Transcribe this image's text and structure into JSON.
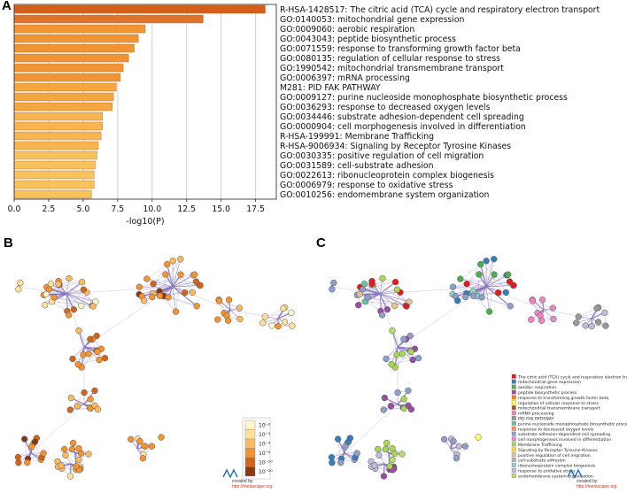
{
  "panels": {
    "a": "A",
    "b": "B",
    "c": "C"
  },
  "chart_data": {
    "type": "bar",
    "orientation": "horizontal",
    "title": "",
    "xlabel": "-log10(P)",
    "ylabel": "",
    "xlim": [
      0,
      19
    ],
    "xticks": [
      "0.0",
      "2.5",
      "5.0",
      "7.5",
      "10.0",
      "12.5",
      "15.0",
      "17.5"
    ],
    "grid": "vertical",
    "categories": [
      "R-HSA-1428517: The citric acid (TCA) cycle and respiratory electron transport",
      "GO:0140053: mitochondrial gene expression",
      "GO:0009060: aerobic respiration",
      "GO:0043043: peptide biosynthetic process",
      "GO:0071559: response to transforming growth factor beta",
      "GO:0080135: regulation of cellular response to stress",
      "GO:1990542: mitochondrial transmembrane transport",
      "GO:0006397: mRNA processing",
      "M281: PID FAK PATHWAY",
      "GO:0009127: purine nucleoside monophosphate biosynthetic process",
      "GO:0036293: response to decreased oxygen levels",
      "GO:0034446: substrate adhesion-dependent cell spreading",
      "GO:0000904: cell morphogenesis involved in differentiation",
      "R-HSA-199991: Membrane Trafficking",
      "R-HSA-9006934: Signaling by Receptor Tyrosine Kinases",
      "GO:0030335: positive regulation of cell migration",
      "GO:0031589: cell-substrate adhesion",
      "GO:0022613: ribonucleoprotein complex biogenesis",
      "GO:0006979: response to oxidative stress",
      "GO:0010256: endomembrane system organization"
    ],
    "values": [
      18.2,
      13.7,
      9.5,
      9.0,
      8.7,
      8.3,
      7.9,
      7.7,
      7.4,
      7.2,
      7.1,
      6.4,
      6.4,
      6.3,
      6.1,
      6.0,
      5.9,
      5.8,
      5.8,
      5.6
    ],
    "bar_colors": [
      "#d25f1a",
      "#e0732a",
      "#f19433",
      "#f19433",
      "#f19433",
      "#f19433",
      "#f19433",
      "#f19433",
      "#f4a741",
      "#f4a741",
      "#f4a741",
      "#f6b54f",
      "#f6b54f",
      "#f6b54f",
      "#f6b54f",
      "#f8c25c",
      "#f8c25c",
      "#f8c25c",
      "#f8c25c",
      "#f8c25c"
    ]
  },
  "network_b": {
    "legend_title": "",
    "legend_labels": [
      "10⁻²",
      "10⁻³",
      "10⁻⁴",
      "10⁻⁶",
      "10⁻¹⁰",
      "10⁻²⁰"
    ],
    "legend_colors": [
      "#fff7c8",
      "#fee09a",
      "#fbb960",
      "#f5932f",
      "#d2651a",
      "#8a3a10"
    ],
    "credit_line1": "created by",
    "credit_url": "http://metascape.org"
  },
  "network_c": {
    "legend_items": [
      {
        "label": "The citric acid (TCA) cycle and respiratory electron tra",
        "color": "#e41a1c"
      },
      {
        "label": "mitochondrial gene expression",
        "color": "#377eb8"
      },
      {
        "label": "aerobic respiration",
        "color": "#4daf4a"
      },
      {
        "label": "peptide biosynthetic process",
        "color": "#984ea3"
      },
      {
        "label": "response to transforming growth factor beta",
        "color": "#ff7f00"
      },
      {
        "label": "regulation of cellular response to stress",
        "color": "#ffff33"
      },
      {
        "label": "mitochondrial transmembrane transport",
        "color": "#a65628"
      },
      {
        "label": "mRNA processing",
        "color": "#f781bf"
      },
      {
        "label": "PID FAK PATHWAY",
        "color": "#999999"
      },
      {
        "label": "purine nucleoside monophosphate biosynthetic proce",
        "color": "#66c2a5"
      },
      {
        "label": "response to decreased oxygen levels",
        "color": "#fc8d62"
      },
      {
        "label": "substrate adhesion-dependent cell spreading",
        "color": "#8da0cb"
      },
      {
        "label": "cell morphogenesis involved in differentiation",
        "color": "#e78ac3"
      },
      {
        "label": "Membrane Trafficking",
        "color": "#a6d854"
      },
      {
        "label": "Signaling by Receptor Tyrosine Kinases",
        "color": "#ffd92f"
      },
      {
        "label": "positive regulation of cell migration",
        "color": "#e5c494"
      },
      {
        "label": "cell-substrate adhesion",
        "color": "#b3b3b3"
      },
      {
        "label": "ribonucleoprotein complex biogenesis",
        "color": "#8dd3c7"
      },
      {
        "label": "response to oxidative stress",
        "color": "#bebada"
      },
      {
        "label": "endomembrane system organization",
        "color": "#b3de69"
      }
    ],
    "credit_line1": "created by",
    "credit_url": "http://metascape.org"
  },
  "colors": {
    "edge": "#7b68b5",
    "grid": "#cfcfcf"
  }
}
